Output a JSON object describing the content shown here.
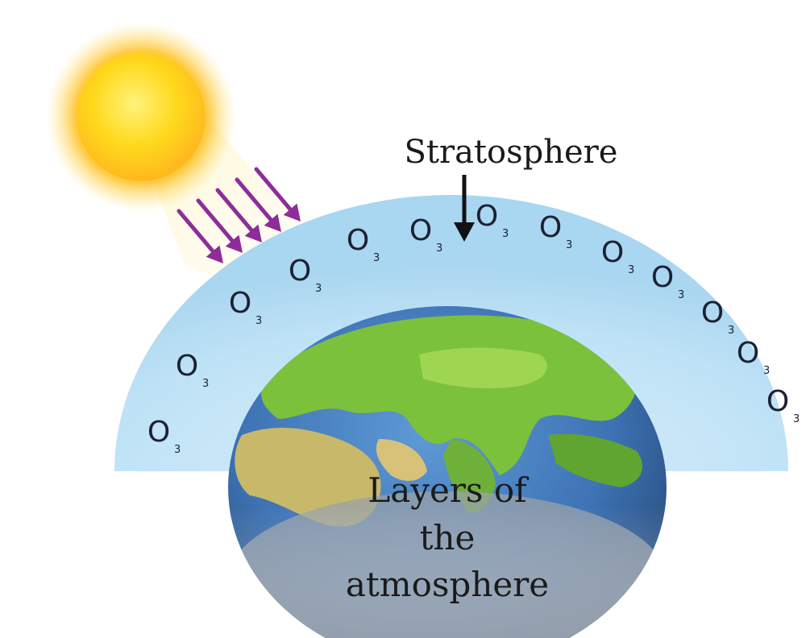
{
  "labels": {
    "stratosphere": "Stratosphere",
    "earth_line1": "Layers of",
    "earth_line2": "the",
    "earth_line3": "atmosphere"
  },
  "ozone": {
    "symbol": "O",
    "subscript": "3"
  },
  "colors": {
    "stratosphere_fill": "#BFE2F6",
    "sun_core": "#FFD21A",
    "sun_glow": "#FFE88A",
    "uv_arrows": "#8E2C9A",
    "ozone_text": "#1C2133",
    "pointer_arrow": "#111111",
    "ocean": "#3E73B5",
    "land": "#7CC13B"
  }
}
